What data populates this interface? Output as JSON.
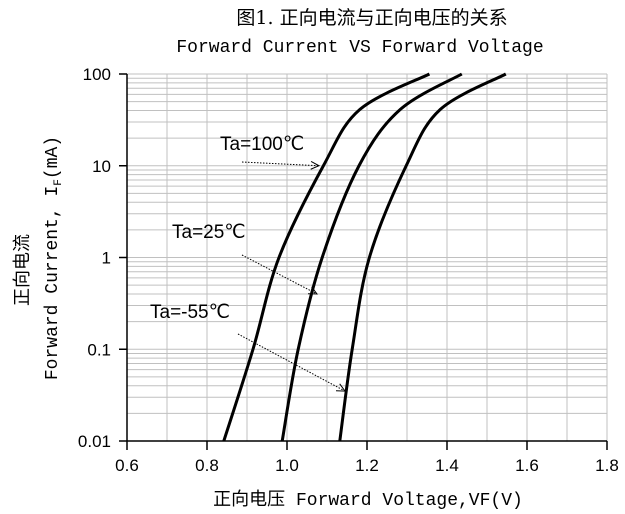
{
  "chart_data": {
    "type": "line",
    "title": "图1. 正向电流与正向电压的关系",
    "subtitle": "Forward Current VS Forward Voltage",
    "xlabel": "正向电压 Forward Voltage,VF(V)",
    "ylabel_cn": "正向电流",
    "ylabel_en": "Forward Current, I",
    "ylabel_sub": "F",
    "ylabel_unit": "(mA)",
    "xlim": [
      0.6,
      1.8
    ],
    "ylim": [
      0.01,
      100
    ],
    "yscale": "log",
    "grid": true,
    "x_ticks": [
      "0.6",
      "0.8",
      "1.0",
      "1.2",
      "1.4",
      "1.6",
      "1.8"
    ],
    "y_ticks": [
      "0.01",
      "0.1",
      "1",
      "10",
      "100"
    ],
    "series": [
      {
        "name": "Ta=100℃",
        "x": [
          0.842,
          0.915,
          0.98,
          1.091,
          1.182,
          1.356
        ],
        "y": [
          0.01,
          0.1,
          1,
          10,
          41,
          100
        ],
        "label_target": [
          1.09,
          10
        ]
      },
      {
        "name": "Ta=25℃",
        "x": [
          0.988,
          1.028,
          1.088,
          1.18,
          1.283,
          1.437
        ],
        "y": [
          0.01,
          0.1,
          1,
          10,
          41,
          100
        ],
        "label_target": [
          1.085,
          0.4
        ]
      },
      {
        "name": "Ta=-55℃",
        "x": [
          1.132,
          1.163,
          1.206,
          1.298,
          1.383,
          1.547
        ],
        "y": [
          0.01,
          0.1,
          1,
          10,
          41,
          100
        ],
        "label_target": [
          1.155,
          0.035
        ]
      }
    ],
    "line_color": "#000000",
    "grid_color": "#c0c0c0"
  }
}
